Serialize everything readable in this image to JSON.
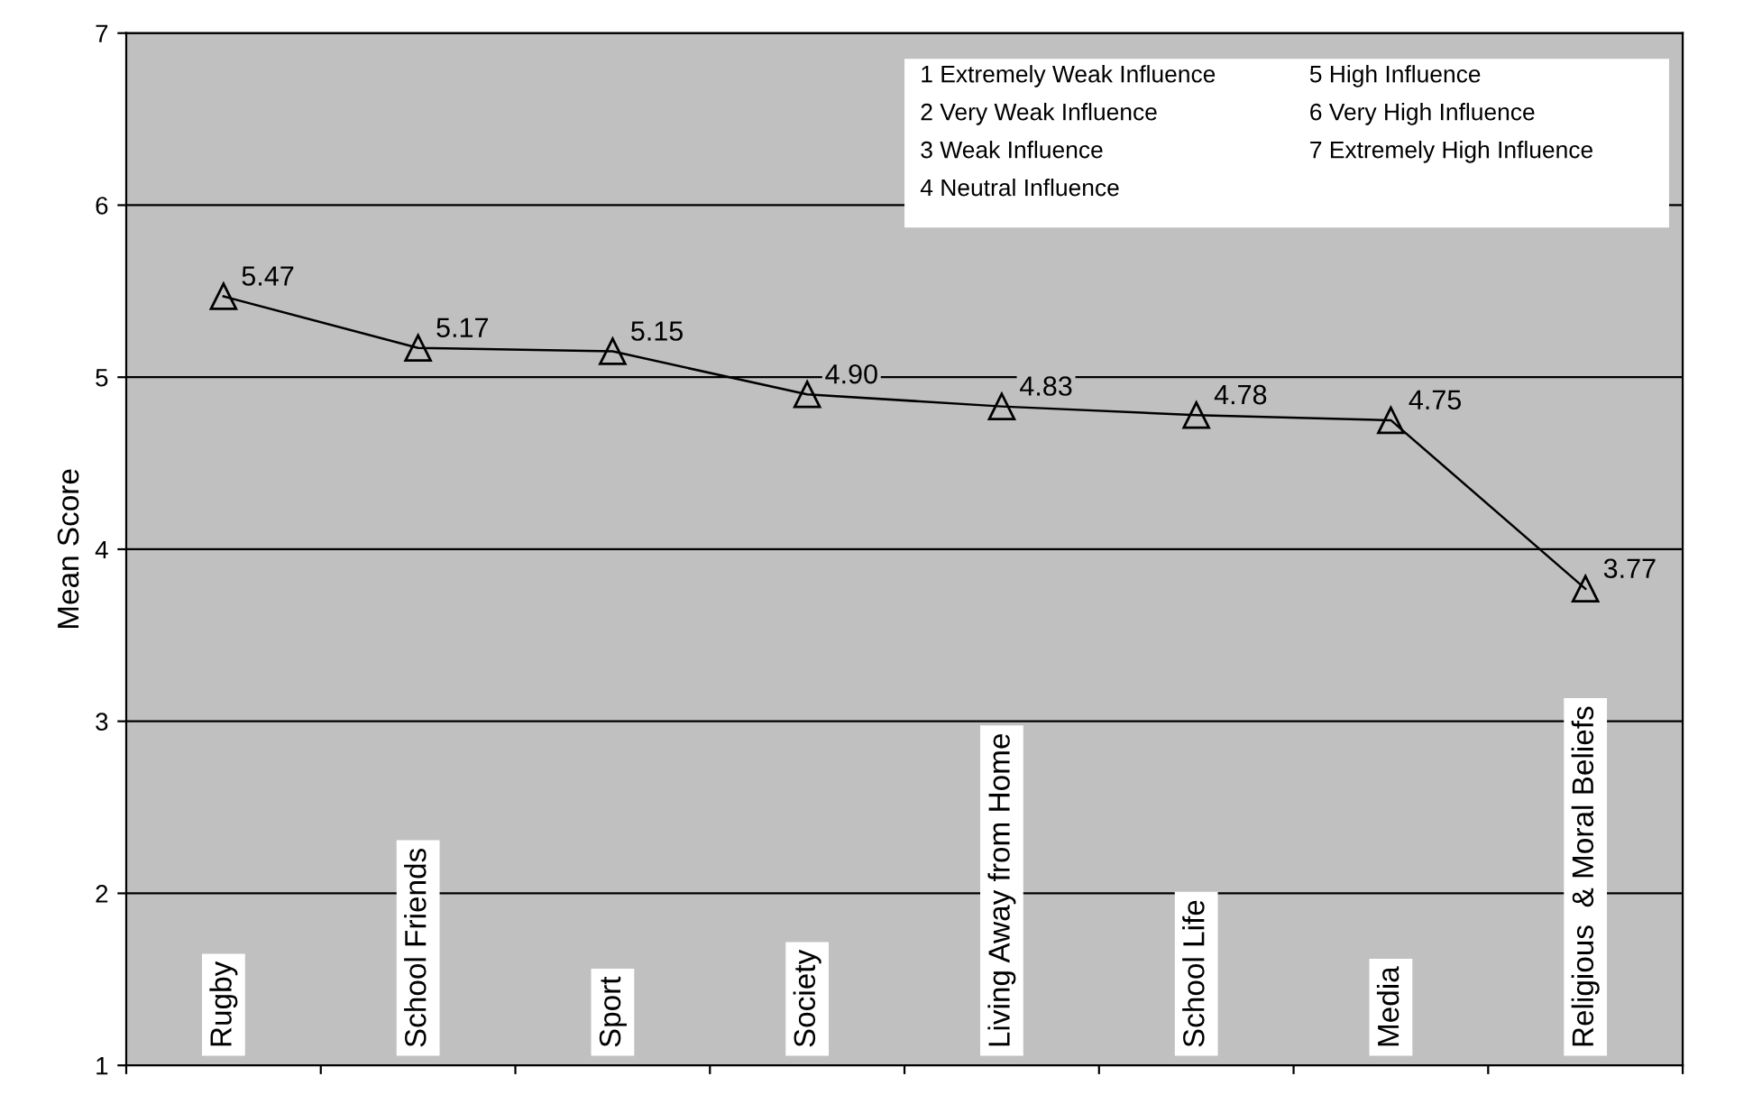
{
  "chart_data": {
    "type": "line",
    "ylabel": "Mean Score",
    "categories": [
      "Rugby",
      "School Friends",
      "Sport",
      "Society",
      "Living Away from Home",
      "School Life",
      "Media",
      "Religious  & Moral Beliefs"
    ],
    "values": [
      5.47,
      5.17,
      5.15,
      4.9,
      4.83,
      4.78,
      4.75,
      3.77
    ],
    "value_labels": [
      "5.47",
      "5.17",
      "5.15",
      "4.90",
      "4.83",
      "4.78",
      "4.75",
      "3.77"
    ],
    "color": "#000000",
    "marker": "triangle",
    "line_style": "solid",
    "ylim": [
      1,
      7
    ],
    "yticks": [
      1,
      2,
      3,
      4,
      5,
      6,
      7
    ],
    "grid": "y",
    "legend": false,
    "annotations": [
      "1 Extremely Weak Influence",
      "2 Very Weak Influence",
      "3 Weak Influence",
      "4 Neutral Influence",
      "5 High Influence",
      "6 Very High Influence",
      "7 Extremely High Influence"
    ]
  }
}
